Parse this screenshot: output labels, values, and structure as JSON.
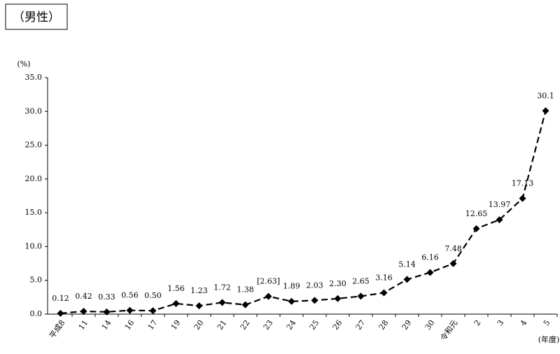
{
  "chart_data": {
    "type": "line",
    "title": "（男性）",
    "y_label": "(%)",
    "x_label": "(年度)",
    "categories": [
      "平成8",
      "11",
      "14",
      "16",
      "17",
      "19",
      "20",
      "21",
      "22",
      "23",
      "24",
      "25",
      "26",
      "27",
      "28",
      "29",
      "30",
      "令和元",
      "2",
      "3",
      "4",
      "5"
    ],
    "values": [
      0.12,
      0.42,
      0.33,
      0.56,
      0.5,
      1.56,
      1.23,
      1.72,
      1.38,
      2.63,
      1.89,
      2.03,
      2.3,
      2.65,
      3.16,
      5.14,
      6.16,
      7.48,
      12.65,
      13.97,
      17.13,
      30.1
    ],
    "value_labels": [
      "0.12",
      "0.42",
      "0.33",
      "0.56",
      "0.50",
      "1.56",
      "1.23",
      "1.72",
      "1.38",
      "[2.63]",
      "1.89",
      "2.03",
      "2.30",
      "2.65",
      "3.16",
      "5.14",
      "6.16",
      "7.48",
      "12.65",
      "13.97",
      "17.13",
      "30.1"
    ],
    "color": "#000000",
    "line_style": "dashed",
    "marker": "diamond",
    "ylim": [
      0,
      35
    ],
    "yticks": [
      {
        "value": 0,
        "label": "0.0"
      },
      {
        "value": 5,
        "label": "5.0"
      },
      {
        "value": 10,
        "label": "10.0"
      },
      {
        "value": 15,
        "label": "15.0"
      },
      {
        "value": 20,
        "label": "20.0"
      },
      {
        "value": 25,
        "label": "25.0"
      },
      {
        "value": 30,
        "label": "30.0"
      },
      {
        "value": 35,
        "label": "35.0"
      }
    ],
    "grid": false
  }
}
